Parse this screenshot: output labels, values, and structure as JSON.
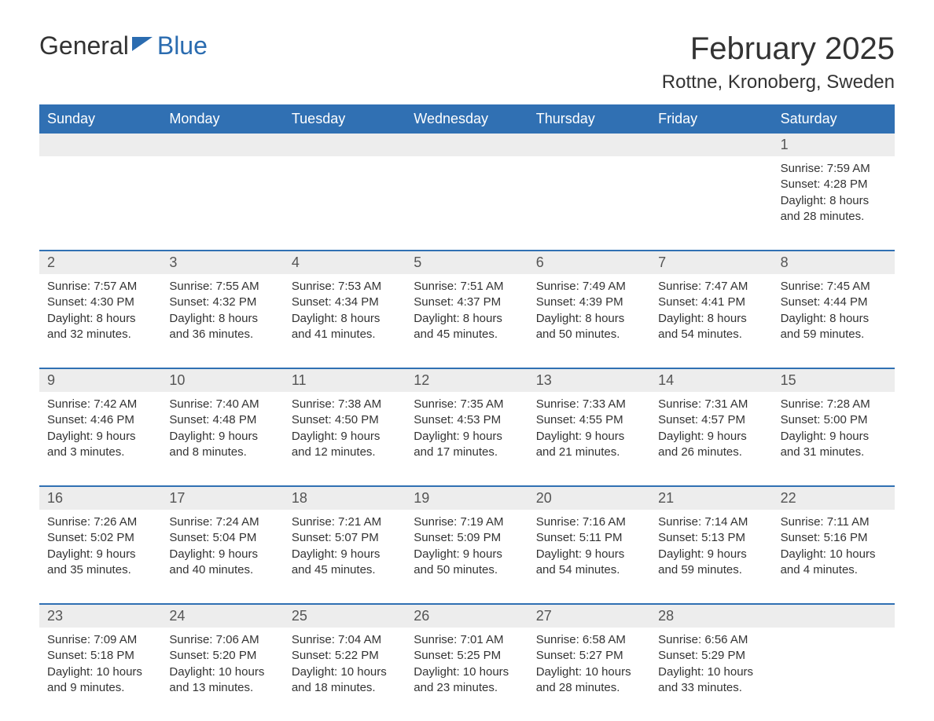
{
  "logo": {
    "word1": "General",
    "word2": "Blue"
  },
  "title": "February 2025",
  "subtitle": "Rottne, Kronoberg, Sweden",
  "colors": {
    "headerBg": "#3070b3",
    "headerText": "#ffffff",
    "dayNumBg": "#ededed",
    "dayNumText": "#555555",
    "ruleColor": "#3070b3",
    "bodyText": "#333333",
    "logoBlue": "#2b6cb0",
    "background": "#ffffff"
  },
  "typography": {
    "title_fontsize": 40,
    "subtitle_fontsize": 24,
    "weekday_fontsize": 18,
    "daynum_fontsize": 18,
    "cell_fontsize": 15,
    "logo_fontsize": 32
  },
  "weekdays": [
    "Sunday",
    "Monday",
    "Tuesday",
    "Wednesday",
    "Thursday",
    "Friday",
    "Saturday"
  ],
  "weeks": [
    [
      null,
      null,
      null,
      null,
      null,
      null,
      {
        "n": "1",
        "sunrise": "Sunrise: 7:59 AM",
        "sunset": "Sunset: 4:28 PM",
        "d1": "Daylight: 8 hours",
        "d2": "and 28 minutes."
      }
    ],
    [
      {
        "n": "2",
        "sunrise": "Sunrise: 7:57 AM",
        "sunset": "Sunset: 4:30 PM",
        "d1": "Daylight: 8 hours",
        "d2": "and 32 minutes."
      },
      {
        "n": "3",
        "sunrise": "Sunrise: 7:55 AM",
        "sunset": "Sunset: 4:32 PM",
        "d1": "Daylight: 8 hours",
        "d2": "and 36 minutes."
      },
      {
        "n": "4",
        "sunrise": "Sunrise: 7:53 AM",
        "sunset": "Sunset: 4:34 PM",
        "d1": "Daylight: 8 hours",
        "d2": "and 41 minutes."
      },
      {
        "n": "5",
        "sunrise": "Sunrise: 7:51 AM",
        "sunset": "Sunset: 4:37 PM",
        "d1": "Daylight: 8 hours",
        "d2": "and 45 minutes."
      },
      {
        "n": "6",
        "sunrise": "Sunrise: 7:49 AM",
        "sunset": "Sunset: 4:39 PM",
        "d1": "Daylight: 8 hours",
        "d2": "and 50 minutes."
      },
      {
        "n": "7",
        "sunrise": "Sunrise: 7:47 AM",
        "sunset": "Sunset: 4:41 PM",
        "d1": "Daylight: 8 hours",
        "d2": "and 54 minutes."
      },
      {
        "n": "8",
        "sunrise": "Sunrise: 7:45 AM",
        "sunset": "Sunset: 4:44 PM",
        "d1": "Daylight: 8 hours",
        "d2": "and 59 minutes."
      }
    ],
    [
      {
        "n": "9",
        "sunrise": "Sunrise: 7:42 AM",
        "sunset": "Sunset: 4:46 PM",
        "d1": "Daylight: 9 hours",
        "d2": "and 3 minutes."
      },
      {
        "n": "10",
        "sunrise": "Sunrise: 7:40 AM",
        "sunset": "Sunset: 4:48 PM",
        "d1": "Daylight: 9 hours",
        "d2": "and 8 minutes."
      },
      {
        "n": "11",
        "sunrise": "Sunrise: 7:38 AM",
        "sunset": "Sunset: 4:50 PM",
        "d1": "Daylight: 9 hours",
        "d2": "and 12 minutes."
      },
      {
        "n": "12",
        "sunrise": "Sunrise: 7:35 AM",
        "sunset": "Sunset: 4:53 PM",
        "d1": "Daylight: 9 hours",
        "d2": "and 17 minutes."
      },
      {
        "n": "13",
        "sunrise": "Sunrise: 7:33 AM",
        "sunset": "Sunset: 4:55 PM",
        "d1": "Daylight: 9 hours",
        "d2": "and 21 minutes."
      },
      {
        "n": "14",
        "sunrise": "Sunrise: 7:31 AM",
        "sunset": "Sunset: 4:57 PM",
        "d1": "Daylight: 9 hours",
        "d2": "and 26 minutes."
      },
      {
        "n": "15",
        "sunrise": "Sunrise: 7:28 AM",
        "sunset": "Sunset: 5:00 PM",
        "d1": "Daylight: 9 hours",
        "d2": "and 31 minutes."
      }
    ],
    [
      {
        "n": "16",
        "sunrise": "Sunrise: 7:26 AM",
        "sunset": "Sunset: 5:02 PM",
        "d1": "Daylight: 9 hours",
        "d2": "and 35 minutes."
      },
      {
        "n": "17",
        "sunrise": "Sunrise: 7:24 AM",
        "sunset": "Sunset: 5:04 PM",
        "d1": "Daylight: 9 hours",
        "d2": "and 40 minutes."
      },
      {
        "n": "18",
        "sunrise": "Sunrise: 7:21 AM",
        "sunset": "Sunset: 5:07 PM",
        "d1": "Daylight: 9 hours",
        "d2": "and 45 minutes."
      },
      {
        "n": "19",
        "sunrise": "Sunrise: 7:19 AM",
        "sunset": "Sunset: 5:09 PM",
        "d1": "Daylight: 9 hours",
        "d2": "and 50 minutes."
      },
      {
        "n": "20",
        "sunrise": "Sunrise: 7:16 AM",
        "sunset": "Sunset: 5:11 PM",
        "d1": "Daylight: 9 hours",
        "d2": "and 54 minutes."
      },
      {
        "n": "21",
        "sunrise": "Sunrise: 7:14 AM",
        "sunset": "Sunset: 5:13 PM",
        "d1": "Daylight: 9 hours",
        "d2": "and 59 minutes."
      },
      {
        "n": "22",
        "sunrise": "Sunrise: 7:11 AM",
        "sunset": "Sunset: 5:16 PM",
        "d1": "Daylight: 10 hours",
        "d2": "and 4 minutes."
      }
    ],
    [
      {
        "n": "23",
        "sunrise": "Sunrise: 7:09 AM",
        "sunset": "Sunset: 5:18 PM",
        "d1": "Daylight: 10 hours",
        "d2": "and 9 minutes."
      },
      {
        "n": "24",
        "sunrise": "Sunrise: 7:06 AM",
        "sunset": "Sunset: 5:20 PM",
        "d1": "Daylight: 10 hours",
        "d2": "and 13 minutes."
      },
      {
        "n": "25",
        "sunrise": "Sunrise: 7:04 AM",
        "sunset": "Sunset: 5:22 PM",
        "d1": "Daylight: 10 hours",
        "d2": "and 18 minutes."
      },
      {
        "n": "26",
        "sunrise": "Sunrise: 7:01 AM",
        "sunset": "Sunset: 5:25 PM",
        "d1": "Daylight: 10 hours",
        "d2": "and 23 minutes."
      },
      {
        "n": "27",
        "sunrise": "Sunrise: 6:58 AM",
        "sunset": "Sunset: 5:27 PM",
        "d1": "Daylight: 10 hours",
        "d2": "and 28 minutes."
      },
      {
        "n": "28",
        "sunrise": "Sunrise: 6:56 AM",
        "sunset": "Sunset: 5:29 PM",
        "d1": "Daylight: 10 hours",
        "d2": "and 33 minutes."
      },
      null
    ]
  ]
}
